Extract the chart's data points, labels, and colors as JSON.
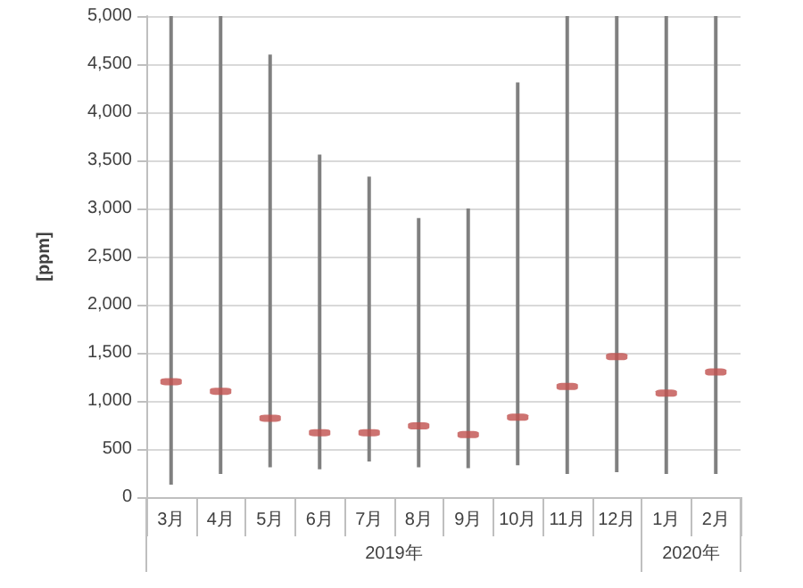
{
  "chart_data": {
    "type": "bar",
    "ylabel": "[ppm]",
    "categories": [
      "3月",
      "4月",
      "5月",
      "6月",
      "7月",
      "8月",
      "9月",
      "10月",
      "11月",
      "12月",
      "1月",
      "2月"
    ],
    "series": [
      {
        "color": "#808080",
        "base": [
          130,
          240,
          310,
          290,
          370,
          310,
          300,
          330,
          240,
          260,
          240,
          240
        ],
        "values": [
          4870,
          4760,
          4290,
          3270,
          2960,
          2590,
          2700,
          3980,
          4760,
          4740,
          4760,
          4760
        ]
      },
      {
        "type": "scatter",
        "color": "#c0504d",
        "x": [
          "3月",
          "4月",
          "5月",
          "6月",
          "7月",
          "8月",
          "9月",
          "10月",
          "11月",
          "12月",
          "1月",
          "2月"
        ],
        "values": [
          1200,
          1100,
          820,
          670,
          670,
          740,
          650,
          830,
          1150,
          1460,
          1080,
          1300
        ]
      }
    ],
    "ylim": [
      0,
      5000
    ],
    "yticks": [
      0,
      500,
      {
        "value": 1000,
        "label": "1,000"
      },
      {
        "value": 1500,
        "label": "1,500"
      },
      {
        "value": 2000,
        "label": "2,000"
      },
      {
        "value": 2500,
        "label": "2,500"
      },
      {
        "value": 3000,
        "label": "3,000"
      },
      {
        "value": 3500,
        "label": "3,500"
      },
      {
        "value": 4000,
        "label": "4,000"
      },
      {
        "value": 4500,
        "label": "4,500"
      },
      {
        "value": 5000,
        "label": "5,000"
      }
    ],
    "grid": "y",
    "annotations": [
      "2019年",
      "2020年"
    ]
  }
}
